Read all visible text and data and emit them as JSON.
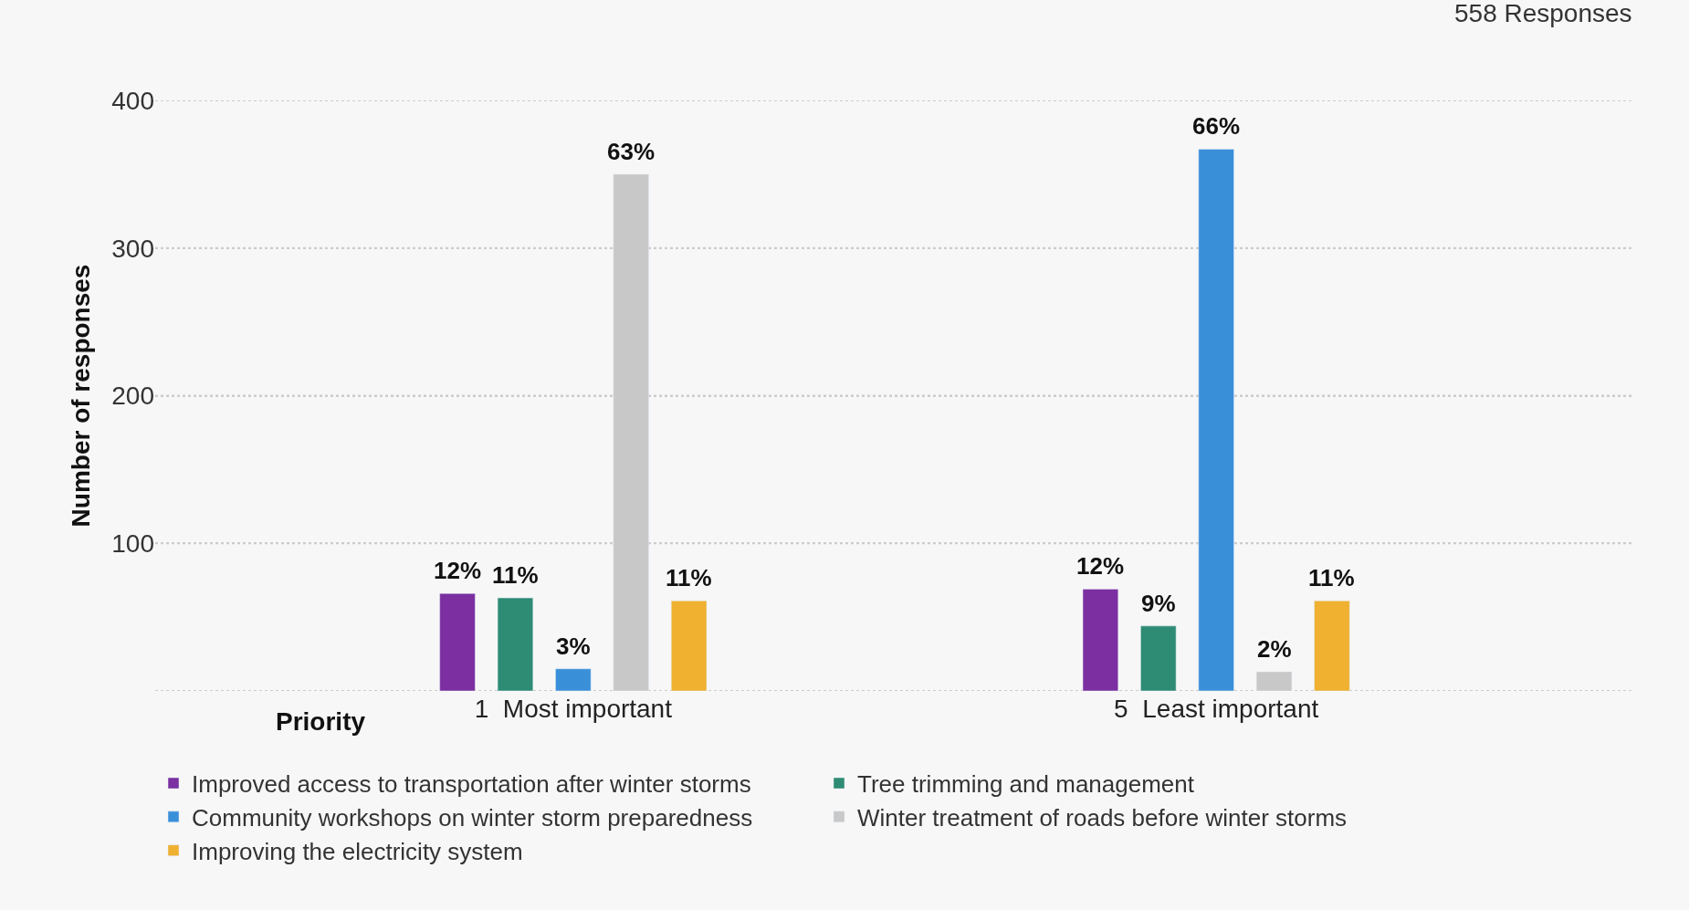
{
  "chart_data": {
    "type": "bar",
    "ylabel": "Number of responses",
    "xlabel": "Priority",
    "annotations": [
      "558 Responses",
      "12%",
      "11%",
      "3%",
      "63%",
      "11%",
      "12%",
      "9%",
      "66%",
      "2%",
      "11%"
    ],
    "categories": [
      "1  Most important",
      "5  Least important"
    ],
    "series": [
      {
        "name": "Improved access to transportation after winter storms",
        "color": "#7b2fa0",
        "values": [
          66,
          69
        ]
      },
      {
        "name": "Tree trimming and management",
        "color": "#2e8b74",
        "values": [
          63,
          44
        ]
      },
      {
        "name": "Community workshops on winter storm preparedness",
        "color": "#3a8fd9",
        "values": [
          15,
          367
        ]
      },
      {
        "name": "Winter treatment of roads before winter storms",
        "color": "#c8c8c8",
        "values": [
          350,
          13
        ]
      },
      {
        "name": "Improving the electricity system",
        "color": "#f0b030",
        "values": [
          61,
          61
        ]
      }
    ],
    "ylim": [
      0,
      400
    ],
    "yticks": [
      {
        "value": 0,
        "label": null
      },
      100,
      200,
      300,
      400
    ],
    "grid": "y",
    "legend": "bottom"
  }
}
